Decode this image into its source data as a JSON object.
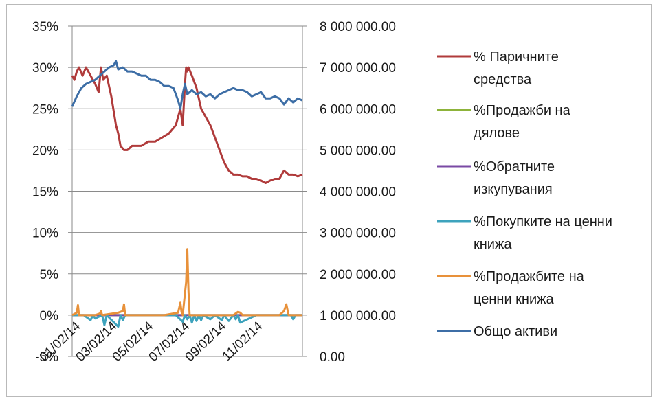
{
  "chart_data": {
    "type": "line",
    "title": "",
    "xlabel": "",
    "ylabel": "",
    "x_tick_labels": [
      "01/02/14",
      "03/02/14",
      "05/02/14",
      "07/02/14",
      "09/02/14",
      "11/02/14"
    ],
    "y_left": {
      "ticks": [
        "-5%",
        "0%",
        "5%",
        "10%",
        "15%",
        "20%",
        "25%",
        "30%",
        "35%"
      ],
      "ylim": [
        -5,
        35
      ],
      "unit": "%"
    },
    "y_right": {
      "ticks": [
        "0.00",
        "1 000 000.00",
        "2 000 000.00",
        "3 000 000.00",
        "4 000 000.00",
        "5 000 000.00",
        "6 000 000.00",
        "7 000 000.00",
        "8 000 000.00"
      ],
      "ylim": [
        0,
        8000000
      ]
    },
    "grid": "horizontal",
    "legend_position": "right",
    "series": [
      {
        "name": "% Паричните средства",
        "axis": "left",
        "color": "#b03b3b",
        "x": [
          0,
          0.01,
          0.02,
          0.03,
          0.045,
          0.06,
          0.08,
          0.1,
          0.115,
          0.125,
          0.135,
          0.15,
          0.17,
          0.19,
          0.2,
          0.21,
          0.225,
          0.24,
          0.26,
          0.28,
          0.3,
          0.33,
          0.36,
          0.39,
          0.42,
          0.45,
          0.47,
          0.48,
          0.49,
          0.495,
          0.5,
          0.505,
          0.52,
          0.54,
          0.56,
          0.58,
          0.6,
          0.62,
          0.64,
          0.66,
          0.68,
          0.7,
          0.72,
          0.74,
          0.76,
          0.78,
          0.8,
          0.82,
          0.84,
          0.86,
          0.88,
          0.9,
          0.92,
          0.94,
          0.96,
          0.98,
          1.0
        ],
        "y": [
          29,
          28.5,
          29.5,
          30,
          29,
          30,
          29,
          28,
          27,
          30,
          28.5,
          29,
          26.5,
          23,
          22,
          20.5,
          20,
          20,
          20.5,
          20.5,
          20.5,
          21,
          21,
          21.5,
          22,
          23,
          25,
          23,
          28,
          30,
          29.5,
          30,
          29,
          27.5,
          25,
          24,
          23,
          21.5,
          20,
          18.5,
          17.5,
          17,
          17,
          16.8,
          16.8,
          16.5,
          16.5,
          16.3,
          16,
          16.3,
          16.5,
          16.5,
          17.5,
          17,
          17,
          16.8,
          17
        ]
      },
      {
        "name": "%Продажби на дялове",
        "axis": "left",
        "color": "#8db33a",
        "x": [
          0,
          1
        ],
        "y": [
          0,
          0
        ]
      },
      {
        "name": "%Обратните изкупувания",
        "axis": "left",
        "color": "#7a4aa4",
        "x": [
          0,
          1
        ],
        "y": [
          0,
          0
        ]
      },
      {
        "name": "%Покупките на ценни книжа",
        "axis": "left",
        "color": "#3ea3bd",
        "x": [
          0,
          0.05,
          0.08,
          0.09,
          0.1,
          0.13,
          0.14,
          0.15,
          0.2,
          0.21,
          0.22,
          0.23,
          0.3,
          0.45,
          0.48,
          0.49,
          0.5,
          0.51,
          0.52,
          0.53,
          0.54,
          0.55,
          0.56,
          0.57,
          0.6,
          0.62,
          0.65,
          0.66,
          0.68,
          0.7,
          0.71,
          0.72,
          0.73,
          0.8,
          0.95,
          0.96,
          0.97,
          1.0
        ],
        "y": [
          0,
          0,
          -0.6,
          0,
          -0.4,
          0,
          -1.2,
          0,
          -1.4,
          0,
          -0.6,
          0,
          0,
          0,
          -0.8,
          0,
          -0.5,
          0,
          -0.9,
          0,
          -0.7,
          0,
          -0.6,
          0,
          -0.5,
          0,
          -0.6,
          0,
          -0.7,
          0,
          -0.5,
          0,
          -0.9,
          0,
          0,
          -0.5,
          0,
          0
        ]
      },
      {
        "name": "%Продажбите на ценни книжа",
        "axis": "left",
        "color": "#e8913a",
        "x": [
          0,
          0.02,
          0.025,
          0.03,
          0.1,
          0.12,
          0.125,
          0.13,
          0.2,
          0.22,
          0.225,
          0.23,
          0.3,
          0.4,
          0.46,
          0.47,
          0.475,
          0.48,
          0.495,
          0.5,
          0.505,
          0.51,
          0.52,
          0.6,
          0.7,
          0.72,
          0.73,
          0.74,
          0.9,
          0.92,
          0.93,
          0.94,
          1.0
        ],
        "y": [
          0,
          0.3,
          1.2,
          0,
          0,
          0.2,
          0.5,
          0,
          0.3,
          0.5,
          1.3,
          0,
          0,
          0,
          0.3,
          1.5,
          0.4,
          0,
          4,
          8,
          3,
          0,
          0,
          0,
          0,
          0.4,
          0.3,
          0,
          0,
          0.5,
          1.3,
          0,
          0
        ]
      },
      {
        "name": "Общо активи",
        "axis": "right",
        "color": "#3d6ea6",
        "x": [
          0,
          0.02,
          0.04,
          0.06,
          0.08,
          0.1,
          0.12,
          0.14,
          0.16,
          0.18,
          0.19,
          0.2,
          0.22,
          0.24,
          0.26,
          0.28,
          0.3,
          0.32,
          0.34,
          0.36,
          0.38,
          0.4,
          0.42,
          0.44,
          0.46,
          0.47,
          0.48,
          0.49,
          0.5,
          0.52,
          0.54,
          0.56,
          0.58,
          0.6,
          0.62,
          0.64,
          0.66,
          0.68,
          0.7,
          0.72,
          0.74,
          0.76,
          0.78,
          0.8,
          0.82,
          0.84,
          0.86,
          0.88,
          0.9,
          0.92,
          0.94,
          0.96,
          0.98,
          1.0
        ],
        "y": [
          6050000,
          6300000,
          6500000,
          6600000,
          6650000,
          6700000,
          6800000,
          6900000,
          7000000,
          7050000,
          7150000,
          6950000,
          7000000,
          6900000,
          6900000,
          6850000,
          6800000,
          6800000,
          6700000,
          6700000,
          6650000,
          6550000,
          6550000,
          6500000,
          6200000,
          6000000,
          6350000,
          6600000,
          6350000,
          6450000,
          6350000,
          6400000,
          6300000,
          6350000,
          6250000,
          6350000,
          6400000,
          6450000,
          6500000,
          6450000,
          6450000,
          6400000,
          6300000,
          6350000,
          6400000,
          6250000,
          6250000,
          6300000,
          6250000,
          6100000,
          6250000,
          6150000,
          6250000,
          6200000
        ]
      }
    ],
    "legend": [
      {
        "lines": [
          "% Паричните",
          "средства"
        ],
        "color": "#b03b3b"
      },
      {
        "lines": [
          "%Продажби на",
          "дялове"
        ],
        "color": "#8db33a"
      },
      {
        "lines": [
          "%Обратните",
          "изкупувания"
        ],
        "color": "#7a4aa4"
      },
      {
        "lines": [
          "%Покупките на ценни",
          "книжа"
        ],
        "color": "#3ea3bd"
      },
      {
        "lines": [
          "%Продажбите на",
          "ценни книжа"
        ],
        "color": "#e8913a"
      },
      {
        "lines": [
          "Общо активи"
        ],
        "color": "#3d6ea6"
      }
    ]
  }
}
